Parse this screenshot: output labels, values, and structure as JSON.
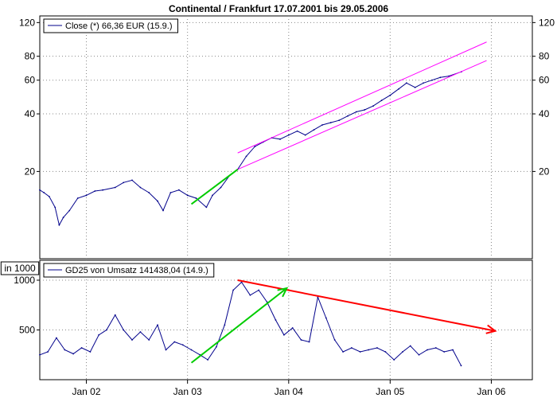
{
  "title": "Continental / Frankfurt 17.07.2001 bis 29.05.2006",
  "x_axis": {
    "start": "2001-07-17",
    "end": "2006-05-29",
    "ticks": [
      {
        "date": "2002-01-01",
        "label": "Jan 02"
      },
      {
        "date": "2003-01-01",
        "label": "Jan 03"
      },
      {
        "date": "2004-01-01",
        "label": "Jan 04"
      },
      {
        "date": "2005-01-01",
        "label": "Jan 05"
      },
      {
        "date": "2006-01-01",
        "label": "Jan 06"
      }
    ]
  },
  "colors": {
    "series": "#00008b",
    "channel": "#ff00ff",
    "trend_up": "#00cc00",
    "trend_down": "#ff0000",
    "grid": "#888888",
    "axis": "#000000"
  },
  "chart_data": [
    {
      "type": "line",
      "name": "price",
      "legend": "Close (*) 66,36 EUR (15.9.)",
      "yscale": "log",
      "ylim": [
        7,
        130
      ],
      "yticks": [
        20,
        40,
        60,
        80,
        120
      ],
      "grid": true,
      "legend_position": "top-left",
      "series": [
        {
          "name": "Close (*) 66,36 EUR (15.9.)",
          "points": [
            [
              "2001-07-17",
              16.0
            ],
            [
              "2001-08-01",
              15.5
            ],
            [
              "2001-08-20",
              14.8
            ],
            [
              "2001-09-10",
              13.0
            ],
            [
              "2001-09-25",
              10.5
            ],
            [
              "2001-10-10",
              11.5
            ],
            [
              "2001-11-01",
              12.5
            ],
            [
              "2001-12-01",
              14.5
            ],
            [
              "2002-01-01",
              15.0
            ],
            [
              "2002-02-01",
              15.8
            ],
            [
              "2002-03-01",
              16.0
            ],
            [
              "2002-04-15",
              16.5
            ],
            [
              "2002-05-15",
              17.5
            ],
            [
              "2002-06-15",
              18.0
            ],
            [
              "2002-07-15",
              16.5
            ],
            [
              "2002-08-15",
              15.5
            ],
            [
              "2002-09-15",
              14.0
            ],
            [
              "2002-10-05",
              12.5
            ],
            [
              "2002-11-01",
              15.5
            ],
            [
              "2002-12-01",
              16.0
            ],
            [
              "2003-01-01",
              15.0
            ],
            [
              "2003-02-01",
              14.5
            ],
            [
              "2003-03-10",
              13.0
            ],
            [
              "2003-04-01",
              15.0
            ],
            [
              "2003-05-01",
              16.5
            ],
            [
              "2003-06-01",
              19.0
            ],
            [
              "2003-07-01",
              20.5
            ],
            [
              "2003-08-01",
              24.0
            ],
            [
              "2003-09-01",
              27.0
            ],
            [
              "2003-10-01",
              28.5
            ],
            [
              "2003-11-01",
              30.0
            ],
            [
              "2003-12-01",
              29.5
            ],
            [
              "2004-01-01",
              31.0
            ],
            [
              "2004-02-01",
              32.5
            ],
            [
              "2004-03-01",
              31.0
            ],
            [
              "2004-04-01",
              33.0
            ],
            [
              "2004-05-01",
              35.0
            ],
            [
              "2004-06-01",
              36.0
            ],
            [
              "2004-07-01",
              37.0
            ],
            [
              "2004-08-01",
              39.0
            ],
            [
              "2004-09-01",
              41.0
            ],
            [
              "2004-10-01",
              42.0
            ],
            [
              "2004-11-01",
              44.0
            ],
            [
              "2004-12-01",
              47.0
            ],
            [
              "2005-01-01",
              50.0
            ],
            [
              "2005-02-01",
              54.0
            ],
            [
              "2005-03-01",
              58.0
            ],
            [
              "2005-04-01",
              55.0
            ],
            [
              "2005-05-01",
              58.0
            ],
            [
              "2005-06-01",
              60.0
            ],
            [
              "2005-07-01",
              62.0
            ],
            [
              "2005-08-01",
              63.0
            ],
            [
              "2005-09-15",
              66.36
            ]
          ]
        }
      ],
      "overlays": [
        {
          "kind": "channel-top",
          "from": [
            "2003-07-01",
            25.0
          ],
          "to": [
            "2005-12-15",
            95.0
          ]
        },
        {
          "kind": "channel-bottom",
          "from": [
            "2003-07-01",
            20.5
          ],
          "to": [
            "2005-12-15",
            76.0
          ]
        },
        {
          "kind": "trend-up",
          "from": [
            "2003-01-15",
            13.5
          ],
          "to": [
            "2003-07-01",
            20.5
          ]
        }
      ]
    },
    {
      "type": "line",
      "name": "volume",
      "ylabel": "in 1000",
      "legend": "GD25 von Umsatz 141438,04 (14.9.)",
      "ylim": [
        0,
        1200
      ],
      "yticks": [
        500,
        1000
      ],
      "grid": true,
      "legend_position": "top-left",
      "series": [
        {
          "name": "GD25 von Umsatz 141438,04 (14.9.)",
          "points": [
            [
              "2001-07-17",
              250
            ],
            [
              "2001-08-15",
              280
            ],
            [
              "2001-09-15",
              420
            ],
            [
              "2001-10-15",
              300
            ],
            [
              "2001-11-15",
              260
            ],
            [
              "2001-12-15",
              320
            ],
            [
              "2002-01-15",
              280
            ],
            [
              "2002-02-15",
              450
            ],
            [
              "2002-03-15",
              500
            ],
            [
              "2002-04-15",
              650
            ],
            [
              "2002-05-15",
              500
            ],
            [
              "2002-06-15",
              400
            ],
            [
              "2002-07-15",
              480
            ],
            [
              "2002-08-15",
              400
            ],
            [
              "2002-09-15",
              550
            ],
            [
              "2002-10-15",
              300
            ],
            [
              "2002-11-15",
              380
            ],
            [
              "2002-12-15",
              350
            ],
            [
              "2003-01-15",
              300
            ],
            [
              "2003-02-15",
              250
            ],
            [
              "2003-03-15",
              200
            ],
            [
              "2003-04-15",
              330
            ],
            [
              "2003-05-15",
              550
            ],
            [
              "2003-06-15",
              900
            ],
            [
              "2003-07-15",
              980
            ],
            [
              "2003-08-15",
              850
            ],
            [
              "2003-09-15",
              900
            ],
            [
              "2003-10-15",
              780
            ],
            [
              "2003-11-15",
              600
            ],
            [
              "2003-12-15",
              450
            ],
            [
              "2004-01-15",
              520
            ],
            [
              "2004-02-15",
              400
            ],
            [
              "2004-03-15",
              380
            ],
            [
              "2004-04-15",
              830
            ],
            [
              "2004-05-15",
              620
            ],
            [
              "2004-06-15",
              400
            ],
            [
              "2004-07-15",
              280
            ],
            [
              "2004-08-15",
              320
            ],
            [
              "2004-09-15",
              280
            ],
            [
              "2004-10-15",
              300
            ],
            [
              "2004-11-15",
              320
            ],
            [
              "2004-12-15",
              280
            ],
            [
              "2005-01-15",
              200
            ],
            [
              "2005-02-15",
              280
            ],
            [
              "2005-03-15",
              340
            ],
            [
              "2005-04-15",
              250
            ],
            [
              "2005-05-15",
              300
            ],
            [
              "2005-06-15",
              320
            ],
            [
              "2005-07-15",
              280
            ],
            [
              "2005-08-15",
              300
            ],
            [
              "2005-09-14",
              141.44
            ]
          ]
        }
      ],
      "overlays": [
        {
          "kind": "trend-down",
          "from": [
            "2003-07-01",
            1000
          ],
          "to": [
            "2006-01-15",
            490
          ],
          "arrow": true
        },
        {
          "kind": "trend-up",
          "from": [
            "2003-01-15",
            170
          ],
          "to": [
            "2003-12-25",
            920
          ],
          "arrow": true
        }
      ]
    }
  ]
}
